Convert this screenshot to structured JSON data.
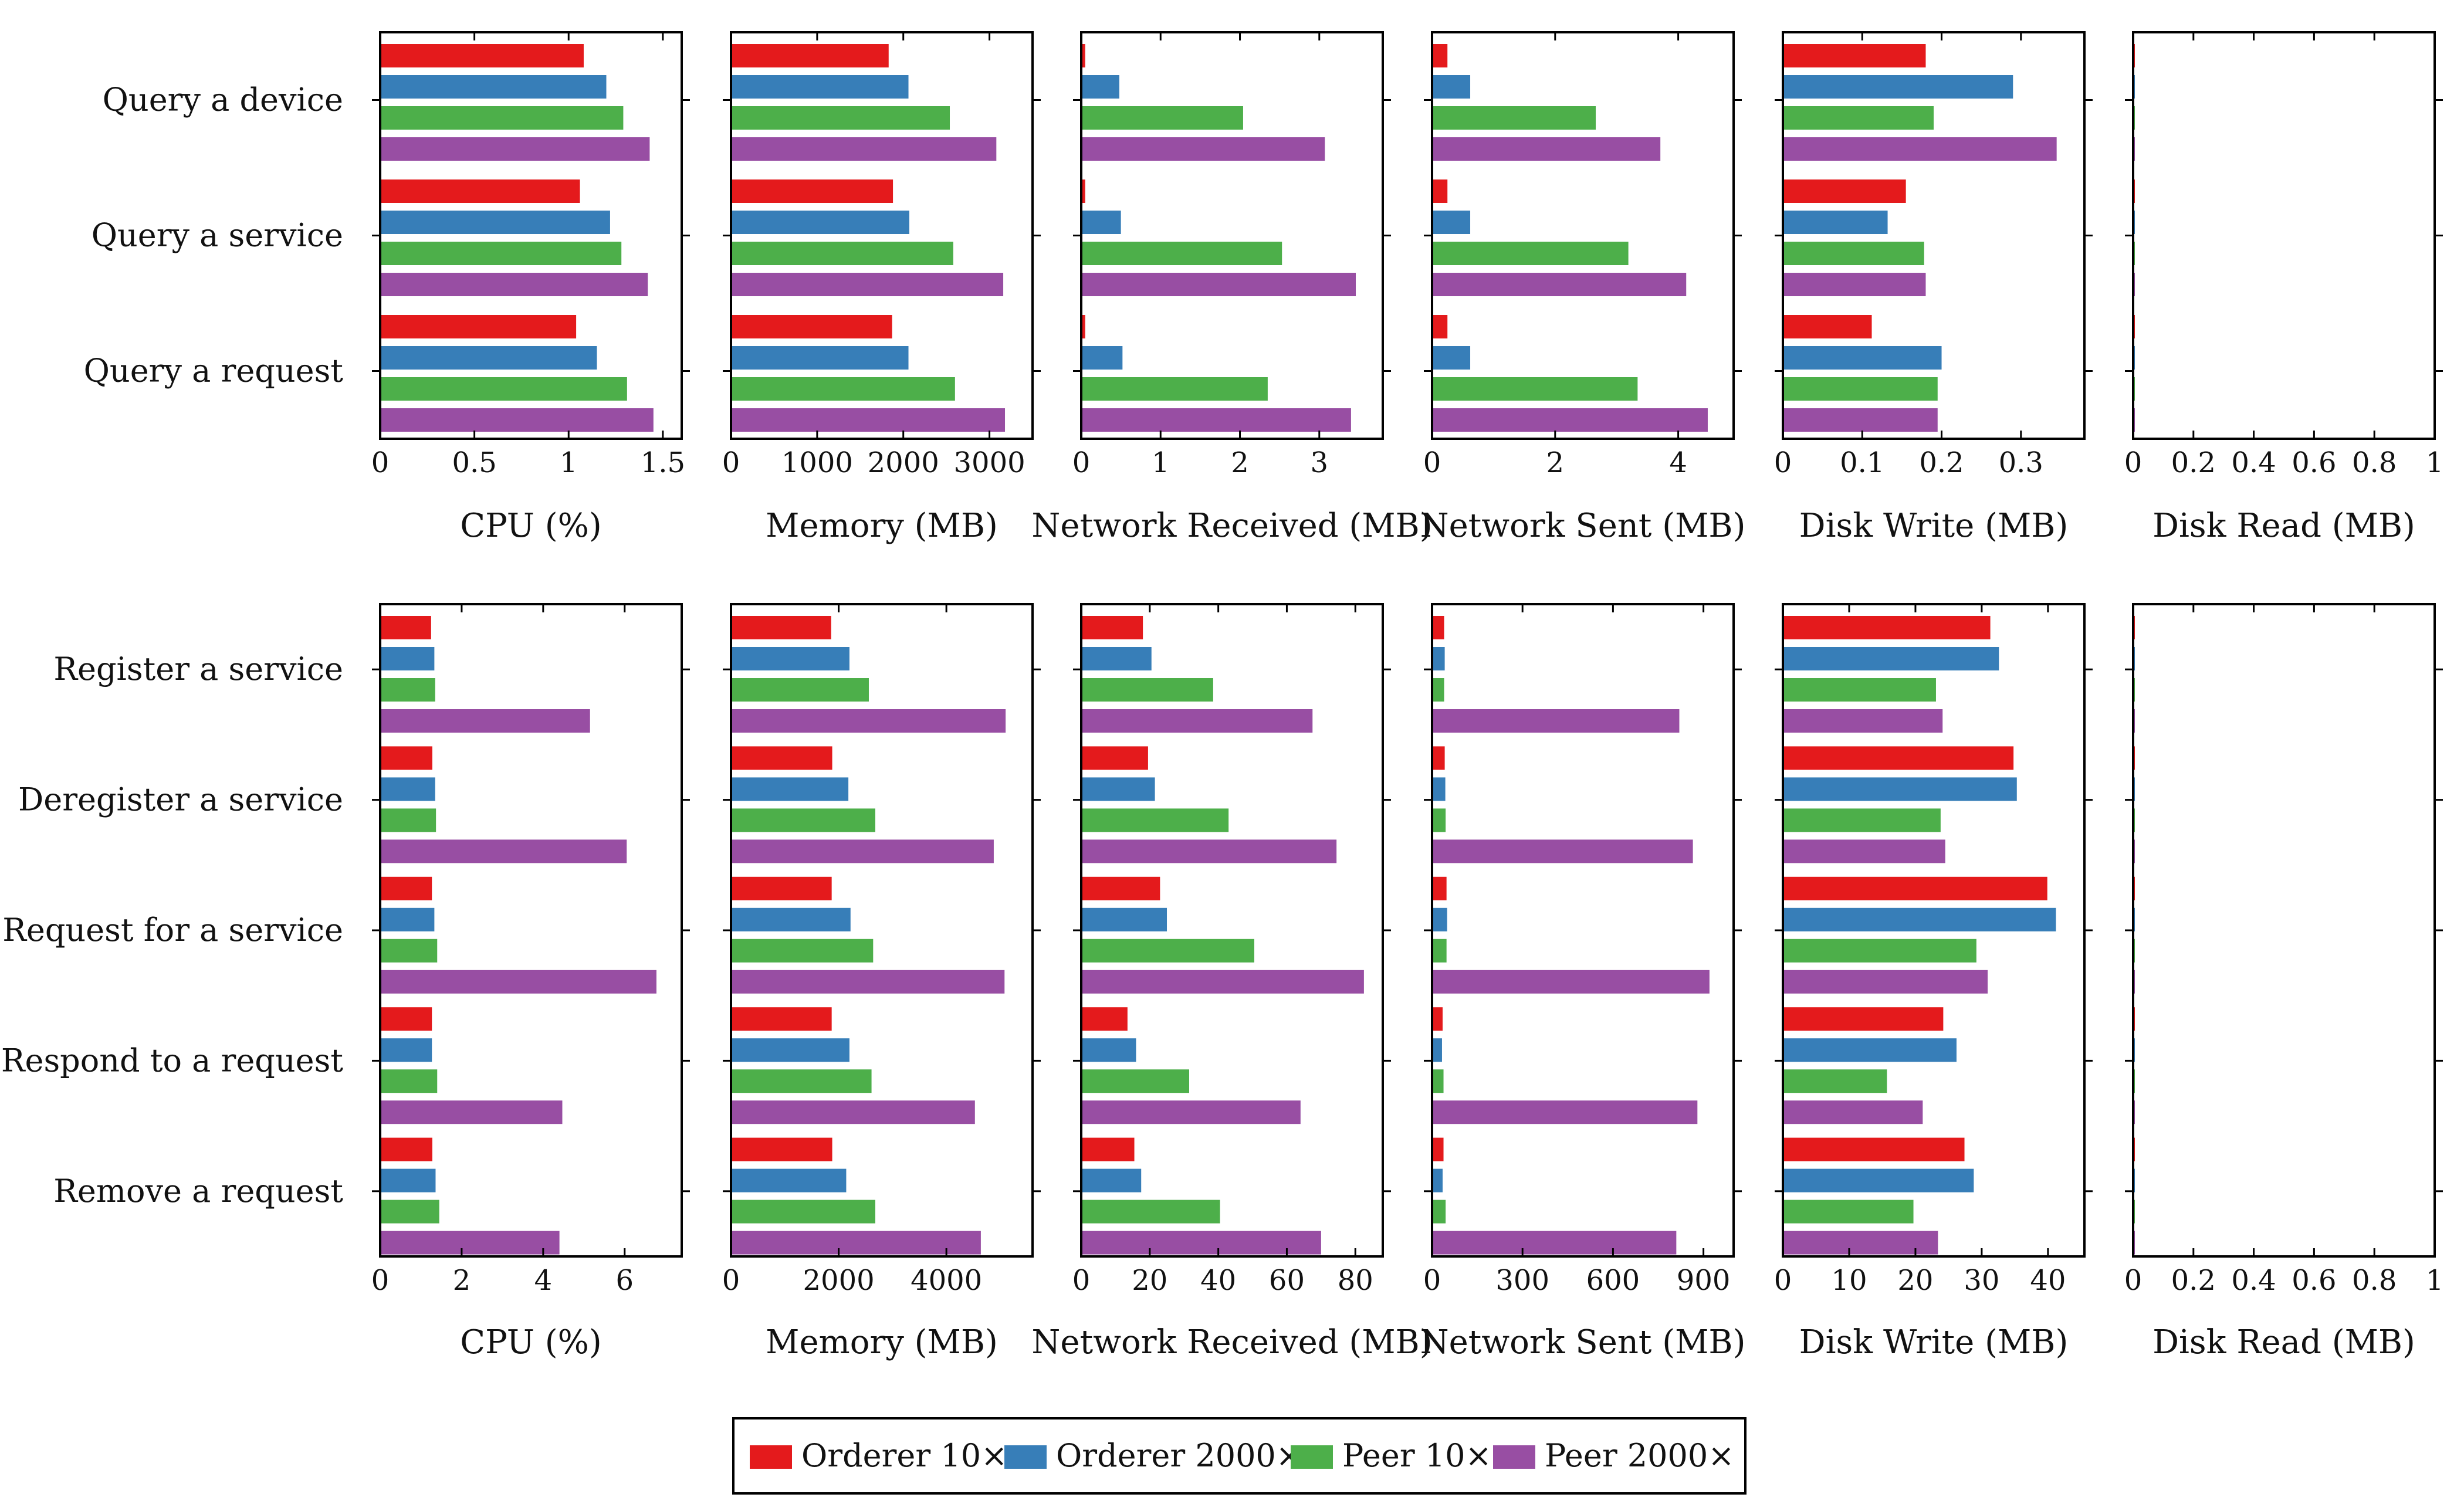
{
  "chart_data": [
    {
      "type": "bar",
      "orientation": "horizontal",
      "title": "",
      "categories": [
        "Query a device",
        "Query a service",
        "Query a request"
      ],
      "panels": [
        {
          "xlabel": "CPU (%)",
          "xlim": [
            0,
            1.6
          ],
          "ticks": [
            0,
            0.5,
            1,
            1.5
          ],
          "tick_labels": [
            "0",
            "0.5",
            "1",
            "1.5"
          ],
          "series": [
            {
              "name": "Orderer 10×",
              "values": [
                1.08,
                1.06,
                1.04
              ]
            },
            {
              "name": "Orderer 2000×",
              "values": [
                1.2,
                1.22,
                1.15
              ]
            },
            {
              "name": "Peer 10×",
              "values": [
                1.29,
                1.28,
                1.31
              ]
            },
            {
              "name": "Peer 2000×",
              "values": [
                1.43,
                1.42,
                1.45
              ]
            }
          ]
        },
        {
          "xlabel": "Memory (MB)",
          "xlim": [
            0,
            3500
          ],
          "ticks": [
            0,
            1000,
            2000,
            3000
          ],
          "tick_labels": [
            "0",
            "1000",
            "2000",
            "3000"
          ],
          "series": [
            {
              "name": "Orderer 10×",
              "values": [
                1830,
                1880,
                1870
              ]
            },
            {
              "name": "Orderer 2000×",
              "values": [
                2060,
                2070,
                2060
              ]
            },
            {
              "name": "Peer 10×",
              "values": [
                2540,
                2580,
                2600
              ]
            },
            {
              "name": "Peer 2000×",
              "values": [
                3080,
                3160,
                3180
              ]
            }
          ]
        },
        {
          "xlabel": "Network Received (MB)",
          "xlim": [
            0,
            3.8
          ],
          "ticks": [
            0,
            1,
            2,
            3
          ],
          "tick_labels": [
            "0",
            "1",
            "2",
            "3"
          ],
          "series": [
            {
              "name": "Orderer 10×",
              "values": [
                0.05,
                0.05,
                0.05
              ]
            },
            {
              "name": "Orderer 2000×",
              "values": [
                0.48,
                0.5,
                0.52
              ]
            },
            {
              "name": "Peer 10×",
              "values": [
                2.04,
                2.53,
                2.35
              ]
            },
            {
              "name": "Peer 2000×",
              "values": [
                3.07,
                3.46,
                3.4
              ]
            }
          ]
        },
        {
          "xlabel": "Network Sent (MB)",
          "xlim": [
            0,
            4.9
          ],
          "ticks": [
            0,
            2,
            4
          ],
          "tick_labels": [
            "0",
            "2",
            "4"
          ],
          "series": [
            {
              "name": "Orderer 10×",
              "values": [
                0.25,
                0.25,
                0.25
              ]
            },
            {
              "name": "Orderer 2000×",
              "values": [
                0.62,
                0.62,
                0.62
              ]
            },
            {
              "name": "Peer 10×",
              "values": [
                2.66,
                3.19,
                3.34
              ]
            },
            {
              "name": "Peer 2000×",
              "values": [
                3.71,
                4.13,
                4.48
              ]
            }
          ]
        },
        {
          "xlabel": "Disk Write (MB)",
          "xlim": [
            0,
            0.38
          ],
          "ticks": [
            0,
            0.1,
            0.2,
            0.3
          ],
          "tick_labels": [
            "0",
            "0.1",
            "0.2",
            "0.3"
          ],
          "series": [
            {
              "name": "Orderer 10×",
              "values": [
                0.18,
                0.155,
                0.112
              ]
            },
            {
              "name": "Orderer 2000×",
              "values": [
                0.29,
                0.132,
                0.2
              ]
            },
            {
              "name": "Peer 10×",
              "values": [
                0.19,
                0.178,
                0.195
              ]
            },
            {
              "name": "Peer 2000×",
              "values": [
                0.345,
                0.18,
                0.195
              ]
            }
          ]
        },
        {
          "xlabel": "Disk Read (MB)",
          "xlim": [
            0,
            1
          ],
          "ticks": [
            0,
            0.2,
            0.4,
            0.6,
            0.8,
            1
          ],
          "tick_labels": [
            "0",
            "0.2",
            "0.4",
            "0.6",
            "0.8",
            "1"
          ],
          "series": [
            {
              "name": "Orderer 10×",
              "values": [
                0,
                0,
                0
              ]
            },
            {
              "name": "Orderer 2000×",
              "values": [
                0,
                0,
                0
              ]
            },
            {
              "name": "Peer 10×",
              "values": [
                0,
                0,
                0
              ]
            },
            {
              "name": "Peer 2000×",
              "values": [
                0,
                0,
                0
              ]
            }
          ]
        }
      ]
    },
    {
      "type": "bar",
      "orientation": "horizontal",
      "title": "",
      "categories": [
        "Register a service",
        "Deregister a service",
        "Request for a service",
        "Respond to a request",
        "Remove a request"
      ],
      "panels": [
        {
          "xlabel": "CPU (%)",
          "xlim": [
            0,
            7.4
          ],
          "ticks": [
            0,
            2,
            4,
            6
          ],
          "tick_labels": [
            "0",
            "2",
            "4",
            "6"
          ],
          "series": [
            {
              "name": "Orderer 10×",
              "values": [
                1.25,
                1.28,
                1.27,
                1.27,
                1.28
              ]
            },
            {
              "name": "Orderer 2000×",
              "values": [
                1.33,
                1.35,
                1.33,
                1.27,
                1.36
              ]
            },
            {
              "name": "Peer 10×",
              "values": [
                1.35,
                1.37,
                1.4,
                1.4,
                1.45
              ]
            },
            {
              "name": "Peer 2000×",
              "values": [
                5.15,
                6.05,
                6.78,
                4.47,
                4.4
              ]
            }
          ]
        },
        {
          "xlabel": "Memory (MB)",
          "xlim": [
            0,
            5600
          ],
          "ticks": [
            0,
            2000,
            4000
          ],
          "tick_labels": [
            "0",
            "2000",
            "4000"
          ],
          "series": [
            {
              "name": "Orderer 10×",
              "values": [
                1860,
                1880,
                1870,
                1870,
                1880
              ]
            },
            {
              "name": "Orderer 2000×",
              "values": [
                2200,
                2180,
                2220,
                2200,
                2140
              ]
            },
            {
              "name": "Peer 10×",
              "values": [
                2560,
                2680,
                2640,
                2610,
                2680
              ]
            },
            {
              "name": "Peer 2000×",
              "values": [
                5100,
                4880,
                5080,
                4530,
                4640
              ]
            }
          ]
        },
        {
          "xlabel": "Network Received (MB)",
          "xlim": [
            0,
            88
          ],
          "ticks": [
            0,
            20,
            40,
            60,
            80
          ],
          "tick_labels": [
            "0",
            "20",
            "40",
            "60",
            "80"
          ],
          "series": [
            {
              "name": "Orderer 10×",
              "values": [
                18,
                19.5,
                23,
                13.5,
                15.5
              ]
            },
            {
              "name": "Orderer 2000×",
              "values": [
                20.5,
                21.5,
                25,
                16,
                17.5
              ]
            },
            {
              "name": "Peer 10×",
              "values": [
                38.5,
                43,
                50.5,
                31.5,
                40.5
              ]
            },
            {
              "name": "Peer 2000×",
              "values": [
                67.5,
                74.5,
                82.5,
                64,
                70
              ]
            }
          ]
        },
        {
          "xlabel": "Network Sent (MB)",
          "xlim": [
            0,
            1000
          ],
          "ticks": [
            0,
            300,
            600,
            900
          ],
          "tick_labels": [
            "0",
            "300",
            "600",
            "900"
          ],
          "series": [
            {
              "name": "Orderer 10×",
              "values": [
                40,
                42,
                48,
                35,
                38
              ]
            },
            {
              "name": "Orderer 2000×",
              "values": [
                42,
                44,
                50,
                33,
                35
              ]
            },
            {
              "name": "Peer 10×",
              "values": [
                40,
                45,
                48,
                38,
                45
              ]
            },
            {
              "name": "Peer 2000×",
              "values": [
                820,
                865,
                920,
                880,
                810
              ]
            }
          ]
        },
        {
          "xlabel": "Disk Write (MB)",
          "xlim": [
            0,
            45.5
          ],
          "ticks": [
            0,
            10,
            20,
            30,
            40
          ],
          "tick_labels": [
            "0",
            "10",
            "20",
            "30",
            "40"
          ],
          "series": [
            {
              "name": "Orderer 10×",
              "values": [
                31.3,
                34.8,
                39.9,
                24.2,
                27.4
              ]
            },
            {
              "name": "Orderer 2000×",
              "values": [
                32.6,
                35.3,
                41.2,
                26.2,
                28.8
              ]
            },
            {
              "name": "Peer 10×",
              "values": [
                23.1,
                23.8,
                29.2,
                15.7,
                19.7
              ]
            },
            {
              "name": "Peer 2000×",
              "values": [
                24.1,
                24.5,
                30.9,
                21.1,
                23.4
              ]
            }
          ]
        },
        {
          "xlabel": "Disk Read (MB)",
          "xlim": [
            0,
            1
          ],
          "ticks": [
            0,
            0.2,
            0.4,
            0.6,
            0.8,
            1
          ],
          "tick_labels": [
            "0",
            "0.2",
            "0.4",
            "0.6",
            "0.8",
            "1"
          ],
          "series": [
            {
              "name": "Orderer 10×",
              "values": [
                0,
                0,
                0,
                0,
                0
              ]
            },
            {
              "name": "Orderer 2000×",
              "values": [
                0,
                0,
                0,
                0,
                0
              ]
            },
            {
              "name": "Peer 10×",
              "values": [
                0,
                0,
                0,
                0,
                0
              ]
            },
            {
              "name": "Peer 2000×",
              "values": [
                0,
                0,
                0,
                0,
                0
              ]
            }
          ]
        }
      ]
    }
  ],
  "legend": {
    "placement": "bottom-center",
    "items": [
      {
        "label": "Orderer 10×",
        "color": "#e41a1c"
      },
      {
        "label": "Orderer 2000×",
        "color": "#377eb8"
      },
      {
        "label": "Peer 10×",
        "color": "#4daf4a"
      },
      {
        "label": "Peer 2000×",
        "color": "#984ea3"
      }
    ]
  },
  "colors": {
    "text": "#111111",
    "axis": "#000000",
    "background": "#ffffff"
  }
}
